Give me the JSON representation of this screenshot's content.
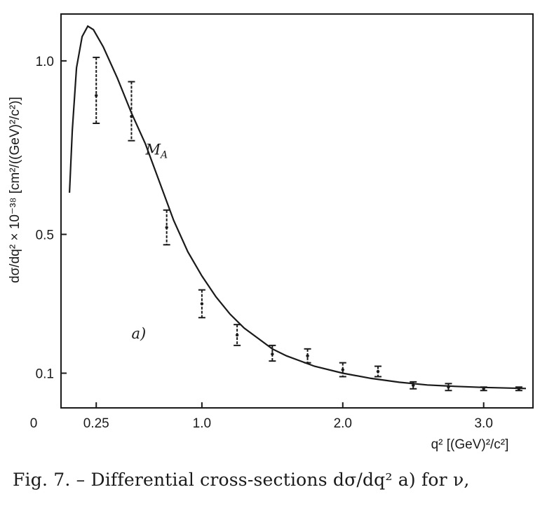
{
  "caption": "Fig. 7. – Differential cross-sections dσ/dq²  a) for ν,",
  "chart_data": {
    "type": "scatter",
    "xlabel": "q² [(GeV)²/c²]",
    "ylabel": "dσ/dq² × 10⁻³⁸ [cm²/((GeV)²/c²)]",
    "xlim": [
      0,
      3.35
    ],
    "ylim": [
      0.0,
      1.135
    ],
    "x_ticks": [
      {
        "value": 0,
        "label": "0"
      },
      {
        "value": 0.25,
        "label": "0.25"
      },
      {
        "value": 1.0,
        "label": "1.0"
      },
      {
        "value": 2.0,
        "label": "2.0"
      },
      {
        "value": 3.0,
        "label": "3.0"
      }
    ],
    "y_ticks": [
      {
        "value": 0.1,
        "label": "0.1"
      },
      {
        "value": 0.5,
        "label": "0.5"
      },
      {
        "value": 1.0,
        "label": "1.0"
      }
    ],
    "series": [
      {
        "kind": "points_with_error_bars",
        "points": [
          {
            "x": 0.25,
            "y": 0.9,
            "err_low": 0.82,
            "err_high": 1.01
          },
          {
            "x": 0.5,
            "y": 0.84,
            "err_low": 0.77,
            "err_high": 0.94
          },
          {
            "x": 0.75,
            "y": 0.52,
            "err_low": 0.47,
            "err_high": 0.57
          },
          {
            "x": 1.0,
            "y": 0.3,
            "err_low": 0.26,
            "err_high": 0.34
          },
          {
            "x": 1.25,
            "y": 0.21,
            "err_low": 0.18,
            "err_high": 0.24
          },
          {
            "x": 1.5,
            "y": 0.155,
            "err_low": 0.135,
            "err_high": 0.18
          },
          {
            "x": 1.75,
            "y": 0.15,
            "err_low": 0.13,
            "err_high": 0.17
          },
          {
            "x": 2.0,
            "y": 0.11,
            "err_low": 0.09,
            "err_high": 0.13
          },
          {
            "x": 2.25,
            "y": 0.105,
            "err_low": 0.09,
            "err_high": 0.12
          },
          {
            "x": 2.5,
            "y": 0.065,
            "err_low": 0.055,
            "err_high": 0.075
          },
          {
            "x": 2.75,
            "y": 0.06,
            "err_low": 0.05,
            "err_high": 0.07
          },
          {
            "x": 3.0,
            "y": 0.055,
            "err_low": 0.05,
            "err_high": 0.06
          },
          {
            "x": 3.25,
            "y": 0.055,
            "err_low": 0.05,
            "err_high": 0.06
          }
        ]
      },
      {
        "kind": "fit_curve",
        "curve_points": [
          [
            0.06,
            0.62
          ],
          [
            0.08,
            0.8
          ],
          [
            0.11,
            0.98
          ],
          [
            0.15,
            1.07
          ],
          [
            0.19,
            1.1
          ],
          [
            0.23,
            1.09
          ],
          [
            0.3,
            1.04
          ],
          [
            0.4,
            0.95
          ],
          [
            0.5,
            0.85
          ],
          [
            0.6,
            0.76
          ],
          [
            0.7,
            0.65
          ],
          [
            0.8,
            0.54
          ],
          [
            0.9,
            0.45
          ],
          [
            1.0,
            0.38
          ],
          [
            1.1,
            0.32
          ],
          [
            1.2,
            0.27
          ],
          [
            1.3,
            0.23
          ],
          [
            1.4,
            0.2
          ],
          [
            1.5,
            0.17
          ],
          [
            1.6,
            0.15
          ],
          [
            1.8,
            0.12
          ],
          [
            2.0,
            0.1
          ],
          [
            2.2,
            0.085
          ],
          [
            2.4,
            0.074
          ],
          [
            2.6,
            0.066
          ],
          [
            2.8,
            0.062
          ],
          [
            3.0,
            0.059
          ],
          [
            3.3,
            0.056
          ]
        ]
      }
    ],
    "annotations": [
      {
        "text": "M_A",
        "x": 0.6,
        "y": 0.73
      },
      {
        "text": "a)",
        "x": 0.5,
        "y": 0.2
      }
    ]
  }
}
